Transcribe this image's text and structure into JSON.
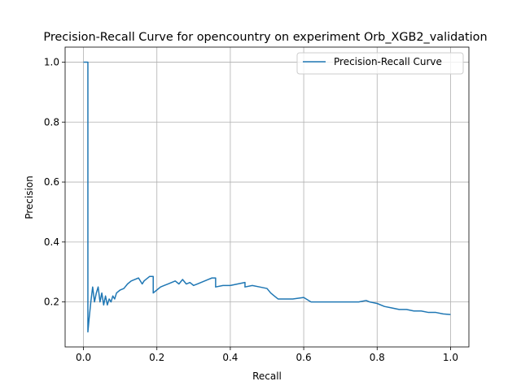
{
  "chart_data": {
    "type": "line",
    "title": "Precision-Recall Curve for opencountry on experiment Orb_XGB2_validation",
    "xlabel": "Recall",
    "ylabel": "Precision",
    "xlim": [
      -0.05,
      1.05
    ],
    "ylim": [
      0.05,
      1.05
    ],
    "xticks": [
      0.0,
      0.2,
      0.4,
      0.6,
      0.8,
      1.0
    ],
    "xtick_labels": [
      "0.0",
      "0.2",
      "0.4",
      "0.6",
      "0.8",
      "1.0"
    ],
    "yticks": [
      0.2,
      0.4,
      0.6,
      0.8,
      1.0
    ],
    "ytick_labels": [
      "0.2",
      "0.4",
      "0.6",
      "0.8",
      "1.0"
    ],
    "grid": true,
    "legend": "top-right",
    "line_color": "#1f77b4",
    "series": [
      {
        "name": "Precision-Recall Curve",
        "x": [
          0.0,
          0.005,
          0.01,
          0.012,
          0.012,
          0.015,
          0.02,
          0.025,
          0.03,
          0.035,
          0.04,
          0.045,
          0.05,
          0.055,
          0.06,
          0.065,
          0.07,
          0.075,
          0.08,
          0.085,
          0.09,
          0.1,
          0.11,
          0.12,
          0.13,
          0.14,
          0.15,
          0.16,
          0.165,
          0.17,
          0.18,
          0.19,
          0.19,
          0.2,
          0.21,
          0.22,
          0.23,
          0.24,
          0.25,
          0.26,
          0.27,
          0.28,
          0.29,
          0.3,
          0.31,
          0.32,
          0.33,
          0.34,
          0.35,
          0.36,
          0.36,
          0.38,
          0.4,
          0.42,
          0.44,
          0.44,
          0.46,
          0.48,
          0.5,
          0.51,
          0.52,
          0.53,
          0.55,
          0.57,
          0.6,
          0.62,
          0.65,
          0.68,
          0.7,
          0.72,
          0.75,
          0.77,
          0.78,
          0.8,
          0.82,
          0.84,
          0.86,
          0.88,
          0.9,
          0.92,
          0.94,
          0.96,
          0.98,
          1.0
        ],
        "y": [
          1.0,
          1.0,
          1.0,
          1.0,
          0.1,
          0.14,
          0.2,
          0.25,
          0.2,
          0.23,
          0.25,
          0.2,
          0.23,
          0.19,
          0.22,
          0.19,
          0.21,
          0.2,
          0.22,
          0.21,
          0.23,
          0.24,
          0.245,
          0.26,
          0.27,
          0.275,
          0.28,
          0.26,
          0.27,
          0.275,
          0.285,
          0.285,
          0.23,
          0.24,
          0.25,
          0.255,
          0.26,
          0.265,
          0.27,
          0.26,
          0.275,
          0.26,
          0.265,
          0.255,
          0.26,
          0.265,
          0.27,
          0.275,
          0.28,
          0.28,
          0.25,
          0.255,
          0.255,
          0.26,
          0.265,
          0.25,
          0.255,
          0.25,
          0.245,
          0.23,
          0.22,
          0.21,
          0.21,
          0.21,
          0.215,
          0.2,
          0.2,
          0.2,
          0.2,
          0.2,
          0.2,
          0.205,
          0.2,
          0.195,
          0.185,
          0.18,
          0.175,
          0.175,
          0.17,
          0.17,
          0.165,
          0.165,
          0.16,
          0.158
        ]
      }
    ]
  }
}
